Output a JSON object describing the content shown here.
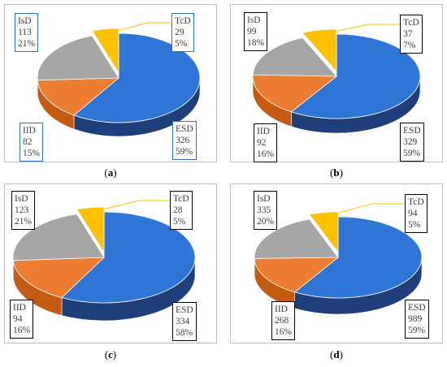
{
  "chart_data": [
    {
      "type": "pie",
      "caption": "a",
      "slices": [
        {
          "name": "ESD",
          "value": 326,
          "percent": "59%"
        },
        {
          "name": "IID",
          "value": 82,
          "percent": "15%"
        },
        {
          "name": "IsD",
          "value": 113,
          "percent": "21%"
        },
        {
          "name": "TcD",
          "value": 29,
          "percent": "5%"
        }
      ]
    },
    {
      "type": "pie",
      "caption": "b",
      "slices": [
        {
          "name": "ESD",
          "value": 329,
          "percent": "59%"
        },
        {
          "name": "IID",
          "value": 92,
          "percent": "16%"
        },
        {
          "name": "IsD",
          "value": 99,
          "percent": "18%"
        },
        {
          "name": "TcD",
          "value": 37,
          "percent": "7%"
        }
      ]
    },
    {
      "type": "pie",
      "caption": "c",
      "slices": [
        {
          "name": "ESD",
          "value": 334,
          "percent": "58%"
        },
        {
          "name": "IID",
          "value": 94,
          "percent": "16%"
        },
        {
          "name": "IsD",
          "value": 123,
          "percent": "21%"
        },
        {
          "name": "TcD",
          "value": 28,
          "percent": "5%"
        }
      ]
    },
    {
      "type": "pie",
      "caption": "d",
      "slices": [
        {
          "name": "ESD",
          "value": 989,
          "percent": "59%"
        },
        {
          "name": "IID",
          "value": 268,
          "percent": "16%"
        },
        {
          "name": "IsD",
          "value": 335,
          "percent": "20%"
        },
        {
          "name": "TcD",
          "value": 94,
          "percent": "5%"
        }
      ]
    }
  ],
  "colors": {
    "ESD": "#2e75d6",
    "ESD_side": "#1f3f7a",
    "IID": "#ed7d31",
    "IID_side": "#c55a11",
    "IsD": "#a6a6a6",
    "IsD_side": "#7f7f7f",
    "TcD": "#ffc000",
    "TcD_side": "#c49000",
    "leader_line": "#ffc000",
    "label_border_a": "#2e75b6",
    "label_border_other": "#000000"
  }
}
